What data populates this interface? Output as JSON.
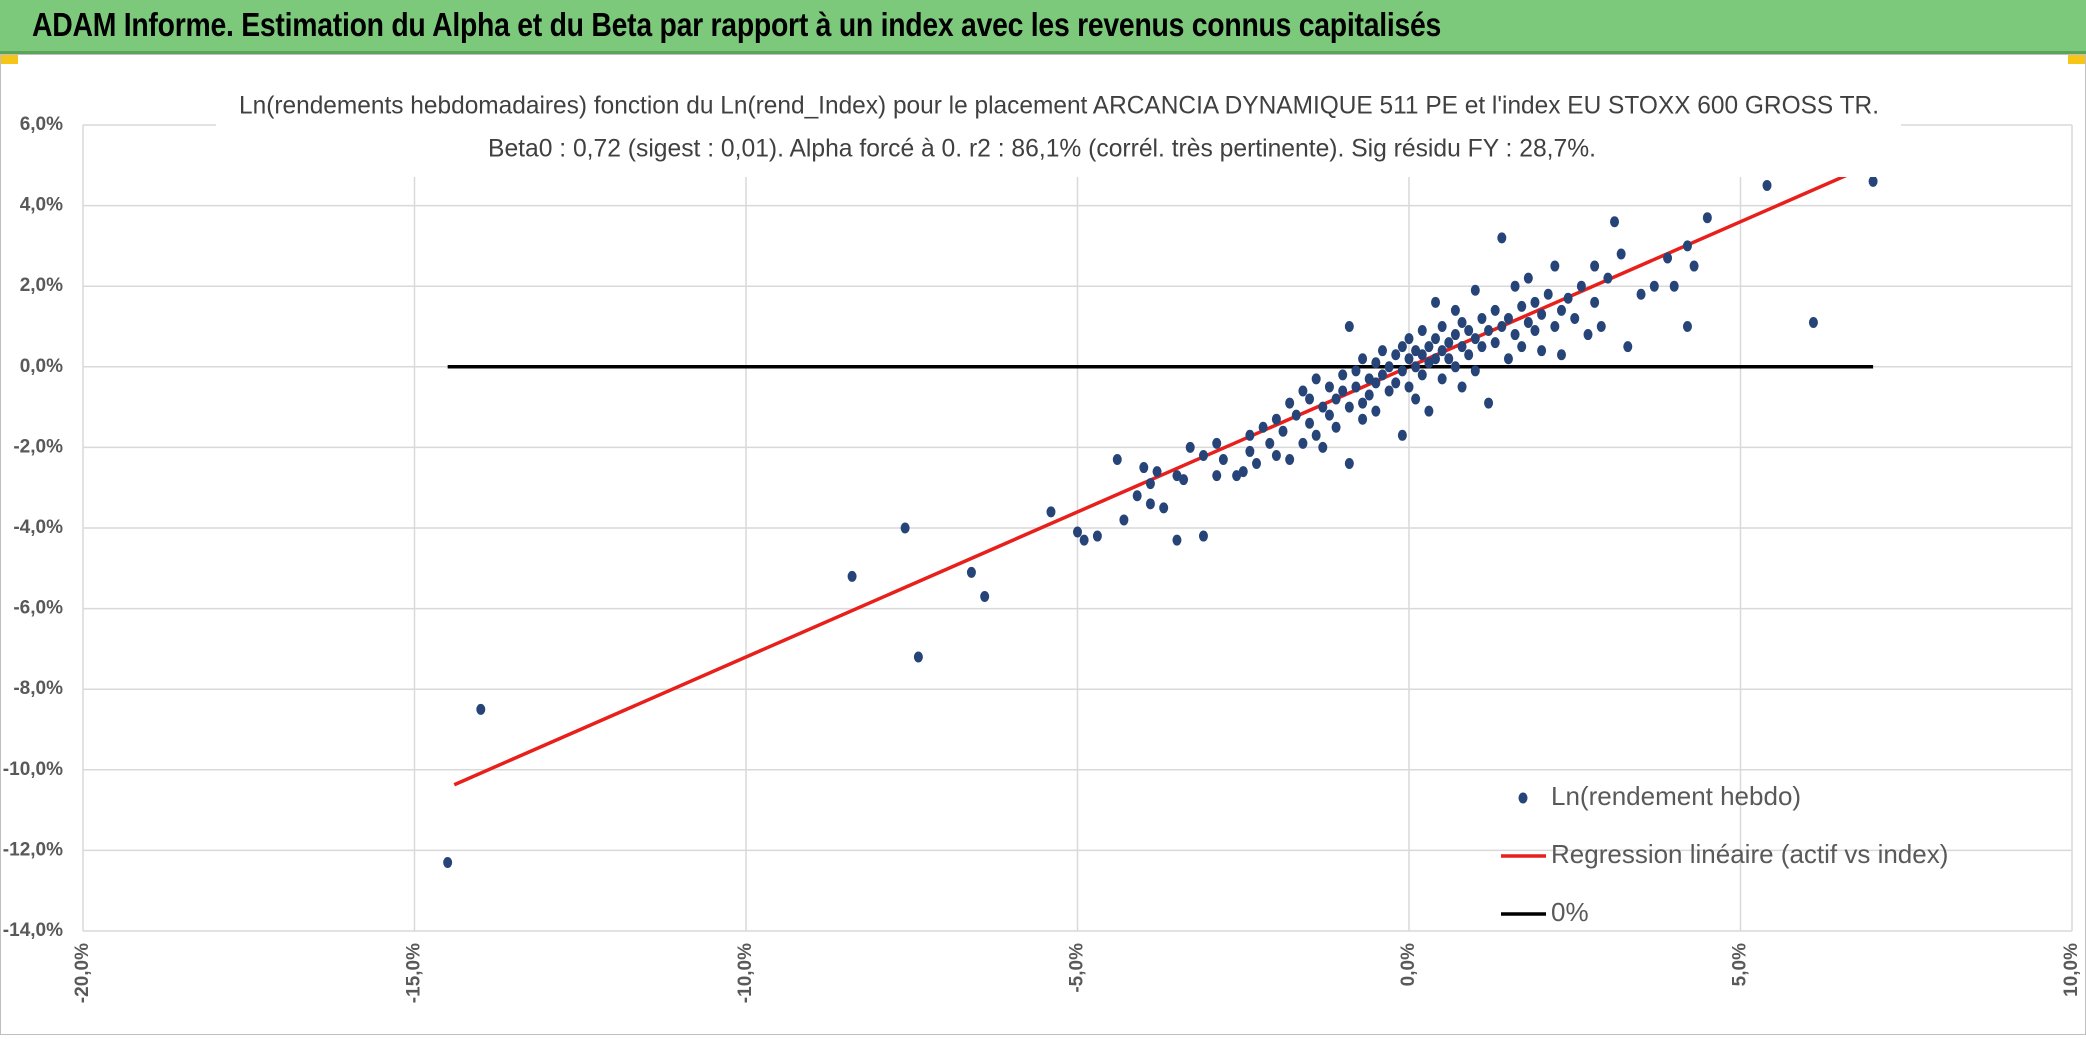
{
  "banner": {
    "title": "ADAM Informe. Estimation du Alpha et du Beta par rapport à un index avec les revenus connus capitalisés",
    "color": "#7dc97b"
  },
  "chart_data": {
    "type": "scatter",
    "title": "Ln(rendements hebdomadaires) fonction du Ln(rend_Index) pour le placement ARCANCIA DYNAMIQUE 511 PE et l'index EU STOXX 600 GROSS TR.",
    "subtitle": "Beta0 : 0,72 (sigest : 0,01). Alpha forcé à 0. r2 : 86,1% (corrél. très pertinente). Sig résidu FY : 28,7%.",
    "xlabel": "",
    "ylabel": "",
    "xlim": [
      -20,
      10
    ],
    "ylim": [
      -14,
      6
    ],
    "x_ticks": [
      "-20,0%",
      "-15,0%",
      "-10,0%",
      "-5,0%",
      "0,0%",
      "5,0%",
      "10,0%"
    ],
    "y_ticks": [
      "6,0%",
      "4,0%",
      "2,0%",
      "0,0%",
      "-2,0%",
      "-4,0%",
      "-6,0%",
      "-8,0%",
      "-10,0%",
      "-12,0%",
      "-14,0%"
    ],
    "grid": true,
    "legend_position": "bottom-right",
    "series": [
      {
        "name": "Ln(rendement hebdo)",
        "kind": "scatter",
        "color": "#264478",
        "points": [
          [
            -14.5,
            -12.3
          ],
          [
            -14.0,
            -8.5
          ],
          [
            -8.4,
            -5.2
          ],
          [
            -7.6,
            -4.0
          ],
          [
            -7.4,
            -7.2
          ],
          [
            -6.6,
            -5.1
          ],
          [
            -6.4,
            -5.7
          ],
          [
            -5.4,
            -3.6
          ],
          [
            -5.0,
            -4.1
          ],
          [
            -4.9,
            -4.3
          ],
          [
            -4.7,
            -4.2
          ],
          [
            -4.4,
            -2.3
          ],
          [
            -4.3,
            -3.8
          ],
          [
            -4.1,
            -3.2
          ],
          [
            -4.0,
            -2.5
          ],
          [
            -3.9,
            -3.4
          ],
          [
            -3.9,
            -2.9
          ],
          [
            -3.8,
            -2.6
          ],
          [
            -3.7,
            -3.5
          ],
          [
            -3.5,
            -4.3
          ],
          [
            -3.5,
            -2.7
          ],
          [
            -3.4,
            -2.8
          ],
          [
            -3.3,
            -2.0
          ],
          [
            -3.1,
            -2.2
          ],
          [
            -3.1,
            -4.2
          ],
          [
            -2.9,
            -1.9
          ],
          [
            -2.9,
            -2.7
          ],
          [
            -2.8,
            -2.3
          ],
          [
            -2.6,
            -2.7
          ],
          [
            -2.5,
            -2.6
          ],
          [
            -2.4,
            -2.1
          ],
          [
            -2.4,
            -1.7
          ],
          [
            -2.3,
            -2.4
          ],
          [
            -2.2,
            -1.5
          ],
          [
            -2.1,
            -1.9
          ],
          [
            -2.0,
            -2.2
          ],
          [
            -2.0,
            -1.3
          ],
          [
            -1.9,
            -1.6
          ],
          [
            -1.8,
            -2.3
          ],
          [
            -1.8,
            -0.9
          ],
          [
            -1.7,
            -1.2
          ],
          [
            -1.6,
            -1.9
          ],
          [
            -1.6,
            -0.6
          ],
          [
            -1.5,
            -1.4
          ],
          [
            -1.5,
            -0.8
          ],
          [
            -1.4,
            -1.7
          ],
          [
            -1.4,
            -0.3
          ],
          [
            -1.3,
            -1.0
          ],
          [
            -1.3,
            -2.0
          ],
          [
            -1.2,
            -1.2
          ],
          [
            -1.2,
            -0.5
          ],
          [
            -1.1,
            -0.8
          ],
          [
            -1.1,
            -1.5
          ],
          [
            -1.0,
            -0.6
          ],
          [
            -1.0,
            -0.2
          ],
          [
            -0.9,
            -1.0
          ],
          [
            -0.9,
            -2.4
          ],
          [
            -0.9,
            1.0
          ],
          [
            -0.8,
            -0.5
          ],
          [
            -0.8,
            -0.1
          ],
          [
            -0.7,
            -0.9
          ],
          [
            -0.7,
            0.2
          ],
          [
            -0.7,
            -1.3
          ],
          [
            -0.6,
            -0.3
          ],
          [
            -0.6,
            -0.7
          ],
          [
            -0.5,
            0.1
          ],
          [
            -0.5,
            -0.4
          ],
          [
            -0.5,
            -1.1
          ],
          [
            -0.4,
            0.4
          ],
          [
            -0.4,
            -0.2
          ],
          [
            -0.3,
            -0.6
          ],
          [
            -0.3,
            0.0
          ],
          [
            -0.2,
            0.3
          ],
          [
            -0.2,
            -0.4
          ],
          [
            -0.1,
            -1.7
          ],
          [
            -0.1,
            0.5
          ],
          [
            -0.1,
            -0.1
          ],
          [
            0.0,
            0.2
          ],
          [
            0.0,
            -0.5
          ],
          [
            0.0,
            0.7
          ],
          [
            0.1,
            0.0
          ],
          [
            0.1,
            0.4
          ],
          [
            0.1,
            -0.8
          ],
          [
            0.2,
            0.3
          ],
          [
            0.2,
            0.9
          ],
          [
            0.2,
            -0.2
          ],
          [
            0.3,
            0.5
          ],
          [
            0.3,
            0.1
          ],
          [
            0.3,
            -1.1
          ],
          [
            0.4,
            0.7
          ],
          [
            0.4,
            0.2
          ],
          [
            0.4,
            1.6
          ],
          [
            0.5,
            0.4
          ],
          [
            0.5,
            -0.3
          ],
          [
            0.5,
            1.0
          ],
          [
            0.6,
            0.6
          ],
          [
            0.6,
            0.2
          ],
          [
            0.7,
            0.8
          ],
          [
            0.7,
            1.4
          ],
          [
            0.7,
            0.0
          ],
          [
            0.8,
            0.5
          ],
          [
            0.8,
            1.1
          ],
          [
            0.8,
            -0.5
          ],
          [
            0.9,
            0.9
          ],
          [
            0.9,
            0.3
          ],
          [
            1.0,
            0.7
          ],
          [
            1.0,
            1.9
          ],
          [
            1.0,
            -0.1
          ],
          [
            1.1,
            1.2
          ],
          [
            1.1,
            0.5
          ],
          [
            1.2,
            0.9
          ],
          [
            1.2,
            -0.9
          ],
          [
            1.3,
            1.4
          ],
          [
            1.3,
            0.6
          ],
          [
            1.4,
            1.0
          ],
          [
            1.4,
            3.2
          ],
          [
            1.5,
            1.2
          ],
          [
            1.5,
            0.2
          ],
          [
            1.6,
            0.8
          ],
          [
            1.6,
            2.0
          ],
          [
            1.7,
            1.5
          ],
          [
            1.7,
            0.5
          ],
          [
            1.8,
            1.1
          ],
          [
            1.8,
            2.2
          ],
          [
            1.9,
            0.9
          ],
          [
            1.9,
            1.6
          ],
          [
            2.0,
            1.3
          ],
          [
            2.0,
            0.4
          ],
          [
            2.1,
            1.8
          ],
          [
            2.2,
            1.0
          ],
          [
            2.2,
            2.5
          ],
          [
            2.3,
            1.4
          ],
          [
            2.3,
            0.3
          ],
          [
            2.4,
            1.7
          ],
          [
            2.5,
            1.2
          ],
          [
            2.6,
            2.0
          ],
          [
            2.7,
            0.8
          ],
          [
            2.8,
            2.5
          ],
          [
            2.8,
            1.6
          ],
          [
            2.9,
            1.0
          ],
          [
            3.0,
            2.2
          ],
          [
            3.1,
            3.6
          ],
          [
            3.2,
            2.8
          ],
          [
            3.3,
            0.5
          ],
          [
            3.5,
            1.8
          ],
          [
            3.7,
            2.0
          ],
          [
            3.9,
            2.7
          ],
          [
            4.0,
            2.0
          ],
          [
            4.2,
            3.0
          ],
          [
            4.2,
            1.0
          ],
          [
            4.3,
            2.5
          ],
          [
            4.5,
            3.7
          ],
          [
            5.4,
            4.5
          ],
          [
            6.1,
            1.1
          ],
          [
            7.0,
            4.6
          ]
        ]
      },
      {
        "name": "Regression linéaire (actif vs index)",
        "kind": "line",
        "color": "#e8201b",
        "points": [
          [
            -14.4,
            -10.37
          ],
          [
            7.0,
            5.04
          ]
        ]
      },
      {
        "name": "0%",
        "kind": "line",
        "color": "#000000",
        "points": [
          [
            -14.5,
            0
          ],
          [
            7.0,
            0
          ]
        ]
      }
    ]
  }
}
